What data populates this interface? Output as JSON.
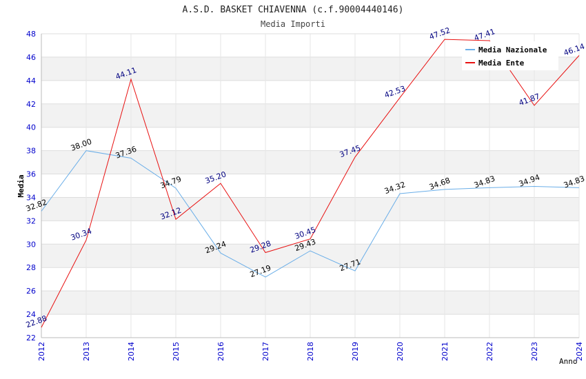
{
  "chart_data": {
    "type": "line",
    "title": "A.S.D. BASKET CHIAVENNA (c.f.90004440146)",
    "subtitle": "Media Importi",
    "xlabel": "Anno",
    "ylabel": "Media",
    "ylim": [
      22,
      48
    ],
    "y_ticks": [
      "22",
      "24",
      "26",
      "28",
      "30",
      "32",
      "34",
      "36",
      "38",
      "40",
      "42",
      "44",
      "46",
      "48"
    ],
    "categories": [
      "2012",
      "2013",
      "2014",
      "2015",
      "2016",
      "2017",
      "2018",
      "2019",
      "2020",
      "2021",
      "2022",
      "2023",
      "2024"
    ],
    "grid": true,
    "legend_position": "top-right",
    "series": [
      {
        "name": "Media Nazionale",
        "color": "#6aaee8",
        "values": [
          32.82,
          38.0,
          37.36,
          34.79,
          29.24,
          27.19,
          29.43,
          27.71,
          34.32,
          34.68,
          34.83,
          34.94,
          34.83
        ],
        "labels": [
          "32.82",
          "38.00",
          "37.36",
          "34.79",
          "29.24",
          "27.19",
          "29.43",
          "27.71",
          "34.32",
          "34.68",
          "34.83",
          "34.94",
          "34.83"
        ]
      },
      {
        "name": "Media Ente",
        "color": "#e81010",
        "values": [
          22.88,
          30.34,
          44.11,
          32.12,
          35.2,
          29.28,
          30.45,
          37.45,
          42.53,
          47.52,
          47.41,
          41.87,
          46.14
        ],
        "labels": [
          "22.88",
          "30.34",
          "44.11",
          "32.12",
          "35.20",
          "29.28",
          "30.45",
          "37.45",
          "42.53",
          "47.52",
          "47.41",
          "41.87",
          "46.14"
        ]
      }
    ]
  }
}
